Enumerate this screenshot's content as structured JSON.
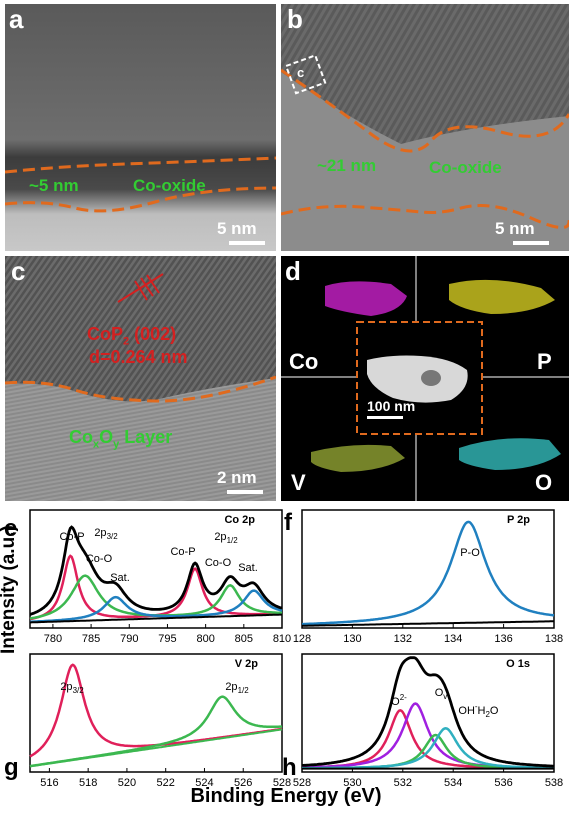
{
  "panel_labels": {
    "a": "a",
    "b": "b",
    "c": "c",
    "d": "d",
    "e": "e",
    "f": "f",
    "g": "g",
    "h": "h"
  },
  "panel_a": {
    "thickness": "~5 nm",
    "layer": "Co-oxide",
    "scale": "5 nm"
  },
  "panel_b": {
    "thickness": "~21 nm",
    "layer": "Co-oxide",
    "scale": "5 nm",
    "box_label": "c"
  },
  "panel_c": {
    "phase": "CoP",
    "phase_sub": "2",
    "plane": " (002)",
    "dspacing": "d=0.264 nm",
    "layer": "Co",
    "layer_sub1": "x",
    "layer_mid": "O",
    "layer_sub2": "y",
    "layer_end": " Layer",
    "scale": "2 nm"
  },
  "panel_d": {
    "elements": {
      "co": "Co",
      "p": "P",
      "v": "V",
      "o": "O"
    },
    "scale": "100 nm",
    "colors": {
      "co": "#c020c0",
      "p": "#c8c020",
      "v": "#8a9a30",
      "o": "#30b0b0"
    }
  },
  "axis": {
    "ylabel": "Intensity (a.u.)",
    "xlabel": "Binding Energy (eV)"
  },
  "colors": {
    "envelope": "#000000",
    "red": "#e0205a",
    "green": "#3cb850",
    "blue": "#2080c0",
    "purple": "#a020e0",
    "cyan": "#30b0c0",
    "orange": "#e06a1e"
  },
  "chart_data": [
    {
      "type": "line",
      "panel": "e",
      "title": "Co 2p",
      "x_ticks": [
        780,
        785,
        790,
        795,
        800,
        805,
        810
      ],
      "xlim": [
        777,
        810
      ],
      "peak_labels": [
        "Co-P",
        "2p3/2",
        "Co-O",
        "Sat.",
        "Co-P",
        "2p1/2",
        "Co-O",
        "Sat."
      ],
      "series": [
        {
          "name": "Co-P",
          "peaks": [
            {
              "center": 782.3,
              "height": 0.58,
              "width": 1.2
            },
            {
              "center": 798.6,
              "height": 0.43,
              "width": 1.2
            }
          ],
          "color": "red"
        },
        {
          "name": "Co-O",
          "peaks": [
            {
              "center": 784.2,
              "height": 0.4,
              "width": 2.2
            },
            {
              "center": 803.2,
              "height": 0.27,
              "width": 1.5
            }
          ],
          "color": "green"
        },
        {
          "name": "Sat.",
          "peaks": [
            {
              "center": 788.2,
              "height": 0.2,
              "width": 1.8
            },
            {
              "center": 806.3,
              "height": 0.22,
              "width": 1.6
            }
          ],
          "color": "blue"
        }
      ],
      "background": {
        "start": 0.05,
        "end": 0.12
      },
      "envelope": true
    },
    {
      "type": "line",
      "panel": "f",
      "title": "P 2p",
      "x_ticks": [
        128,
        130,
        132,
        134,
        136,
        138
      ],
      "xlim": [
        128,
        138
      ],
      "peak_labels": [
        "P-O"
      ],
      "series": [
        {
          "name": "P-O",
          "peaks": [
            {
              "center": 134.6,
              "height": 0.9,
              "width": 0.85
            }
          ],
          "color": "blue"
        }
      ],
      "background": {
        "start": 0.02,
        "end": 0.06
      },
      "envelope": false
    },
    {
      "type": "line",
      "panel": "g",
      "title": "V 2p",
      "x_ticks": [
        516,
        518,
        520,
        522,
        524,
        526,
        528
      ],
      "xlim": [
        515,
        528
      ],
      "peak_labels": [
        "2p3/2",
        "2p1/2"
      ],
      "series": [
        {
          "name": "2p3/2",
          "peaks": [
            {
              "center": 517.2,
              "height": 0.85,
              "width": 0.75
            }
          ],
          "color": "red"
        },
        {
          "name": "2p1/2",
          "peaks": [
            {
              "center": 524.9,
              "height": 0.37,
              "width": 0.85
            }
          ],
          "color": "green"
        }
      ],
      "background": {
        "start": 0.05,
        "end": 0.38
      },
      "envelope": false
    },
    {
      "type": "line",
      "panel": "h",
      "title": "O 1s",
      "x_ticks": [
        528,
        530,
        532,
        534,
        536,
        538
      ],
      "xlim": [
        528,
        538
      ],
      "peak_labels": [
        "O2-",
        "Ov",
        "OH-",
        "H2O"
      ],
      "series": [
        {
          "name": "O2-",
          "peaks": [
            {
              "center": 531.9,
              "height": 0.52,
              "width": 0.55
            }
          ],
          "color": "red"
        },
        {
          "name": "Ov",
          "peaks": [
            {
              "center": 532.5,
              "height": 0.58,
              "width": 0.62
            }
          ],
          "color": "purple"
        },
        {
          "name": "OH-",
          "peaks": [
            {
              "center": 533.3,
              "height": 0.3,
              "width": 0.55
            }
          ],
          "color": "green"
        },
        {
          "name": "H2O",
          "peaks": [
            {
              "center": 533.7,
              "height": 0.36,
              "width": 0.6
            }
          ],
          "color": "cyan"
        }
      ],
      "background": {
        "start": 0.03,
        "end": 0.03
      },
      "envelope": true
    }
  ]
}
